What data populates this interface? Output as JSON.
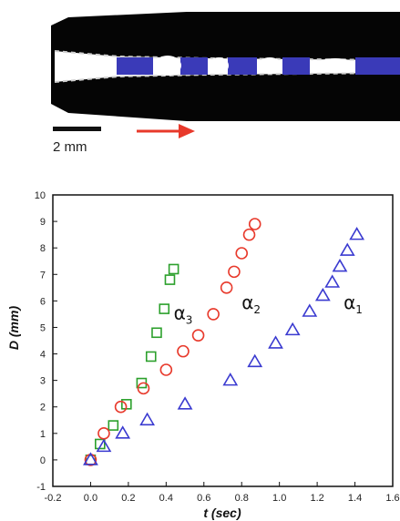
{
  "photo": {
    "scale_bar_label": "2 mm",
    "arrow_color": "#e8392b",
    "droplet_color": "#3a3ab8",
    "tube_color": "#050505"
  },
  "chart_data": {
    "type": "scatter",
    "xlabel": "t (sec)",
    "ylabel": "D (mm)",
    "xlim": [
      -0.2,
      1.6
    ],
    "ylim": [
      -1,
      10
    ],
    "xticks": [
      -0.2,
      0.0,
      0.2,
      0.4,
      0.6,
      0.8,
      1.0,
      1.2,
      1.4,
      1.6
    ],
    "xtick_labels": [
      "-0.2",
      "0.0",
      "0.2",
      "0.4",
      "0.6",
      "0.8",
      "1.0",
      "1.2",
      "1.4",
      "1.6"
    ],
    "yticks": [
      -1,
      0,
      1,
      2,
      3,
      4,
      5,
      6,
      7,
      8,
      9,
      10
    ],
    "ytick_labels": [
      "-1",
      "0",
      "1",
      "2",
      "3",
      "4",
      "5",
      "6",
      "7",
      "8",
      "9",
      "10"
    ],
    "grid": false,
    "series": [
      {
        "name": "α3",
        "marker": "square",
        "color": "#2ca02c",
        "x": [
          0.0,
          0.05,
          0.12,
          0.19,
          0.27,
          0.32,
          0.35,
          0.39,
          0.42,
          0.44
        ],
        "y": [
          0.0,
          0.6,
          1.3,
          2.1,
          2.9,
          3.9,
          4.8,
          5.7,
          6.8,
          7.2
        ]
      },
      {
        "name": "α2",
        "marker": "circle",
        "color": "#e8392b",
        "x": [
          0.0,
          0.07,
          0.16,
          0.28,
          0.4,
          0.49,
          0.57,
          0.65,
          0.72,
          0.76,
          0.8,
          0.84,
          0.87
        ],
        "y": [
          0.0,
          1.0,
          2.0,
          2.7,
          3.4,
          4.1,
          4.7,
          5.5,
          6.5,
          7.1,
          7.8,
          8.5,
          8.9
        ]
      },
      {
        "name": "α1",
        "marker": "triangle",
        "color": "#3a3ad0",
        "x": [
          0.0,
          0.07,
          0.17,
          0.3,
          0.5,
          0.74,
          0.87,
          0.98,
          1.07,
          1.16,
          1.23,
          1.28,
          1.32,
          1.36,
          1.41
        ],
        "y": [
          0.0,
          0.5,
          1.0,
          1.5,
          2.1,
          3.0,
          3.7,
          4.4,
          4.9,
          5.6,
          6.2,
          6.7,
          7.3,
          7.9,
          8.5
        ]
      }
    ],
    "annotations": [
      {
        "text": "α",
        "sub": "3",
        "x": 0.44,
        "y": 5.3
      },
      {
        "text": "α",
        "sub": "2",
        "x": 0.8,
        "y": 5.7
      },
      {
        "text": "α",
        "sub": "1",
        "x": 1.34,
        "y": 5.7
      }
    ]
  }
}
